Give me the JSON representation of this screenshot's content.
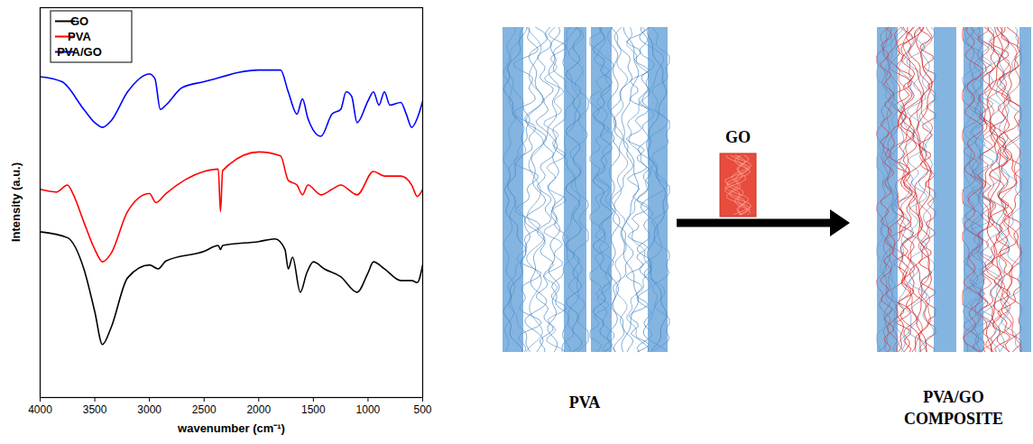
{
  "chart_data": {
    "type": "line",
    "xlabel": "wavenumber (cm⁻¹)",
    "ylabel": "Intensity (a.u.)",
    "xlim": [
      4000,
      500
    ],
    "xticks": [
      4000,
      3500,
      3000,
      2500,
      2000,
      1500,
      1000,
      500
    ],
    "ylim": [
      0,
      100
    ],
    "tick_labels": "x",
    "legend": "top-left",
    "series": [
      {
        "name": "GO",
        "color": "#000000",
        "x": [
          4000,
          3750,
          3600,
          3500,
          3430,
          3350,
          3200,
          3000,
          2920,
          2850,
          2500,
          2370,
          2350,
          2330,
          2000,
          1850,
          1760,
          1730,
          1690,
          1620,
          1560,
          1500,
          1400,
          1250,
          1100,
          1000,
          950,
          850,
          700,
          600,
          550,
          500
        ],
        "values": [
          42.5,
          41,
          33,
          22,
          13.6,
          18,
          30.7,
          34,
          33,
          35,
          37.5,
          39,
          38,
          39,
          40,
          40.7,
          38,
          33,
          36,
          27,
          32,
          34.8,
          33,
          31,
          27,
          32,
          34.8,
          33,
          30,
          30,
          29.5,
          34
        ]
      },
      {
        "name": "PVA",
        "color": "#ff0000",
        "x": [
          4000,
          3850,
          3750,
          3700,
          3600,
          3500,
          3430,
          3350,
          3200,
          3000,
          2940,
          2850,
          2500,
          2370,
          2350,
          2330,
          2000,
          1800,
          1730,
          1650,
          1600,
          1550,
          1430,
          1330,
          1250,
          1100,
          950,
          850,
          700,
          600,
          550,
          500
        ],
        "values": [
          53.4,
          52.7,
          54.5,
          52.3,
          45,
          38,
          34.8,
          37,
          47.7,
          52.3,
          50,
          52.3,
          58,
          58.6,
          47.7,
          58.2,
          63,
          62,
          55.7,
          54.5,
          52,
          54.5,
          52,
          53.4,
          54.5,
          52,
          58,
          56.8,
          56.8,
          54.5,
          51.6,
          53.4
        ]
      },
      {
        "name": "PVA/GO",
        "color": "#0000ff",
        "x": [
          4000,
          3800,
          3600,
          3500,
          3430,
          3350,
          3200,
          3000,
          2950,
          2900,
          2850,
          2700,
          2500,
          2000,
          1800,
          1730,
          1650,
          1600,
          1550,
          1430,
          1330,
          1250,
          1200,
          1150,
          1100,
          1000,
          950,
          900,
          850,
          800,
          700,
          650,
          600,
          550,
          500
        ],
        "values": [
          82.3,
          81,
          73.9,
          70.5,
          69.3,
          71,
          78.4,
          83,
          81.8,
          73.9,
          75,
          79.5,
          81,
          84,
          84,
          78.4,
          72.7,
          76.6,
          71.6,
          67,
          72.7,
          73.9,
          78.4,
          77.3,
          70.5,
          76.1,
          78.4,
          75,
          78.4,
          75,
          75.7,
          72.7,
          69.3,
          71.6,
          76
        ]
      }
    ]
  },
  "diagram": {
    "before_label": "PVA",
    "additive_label": "GO",
    "after_label": "PVA/GO COMPOSITE"
  }
}
